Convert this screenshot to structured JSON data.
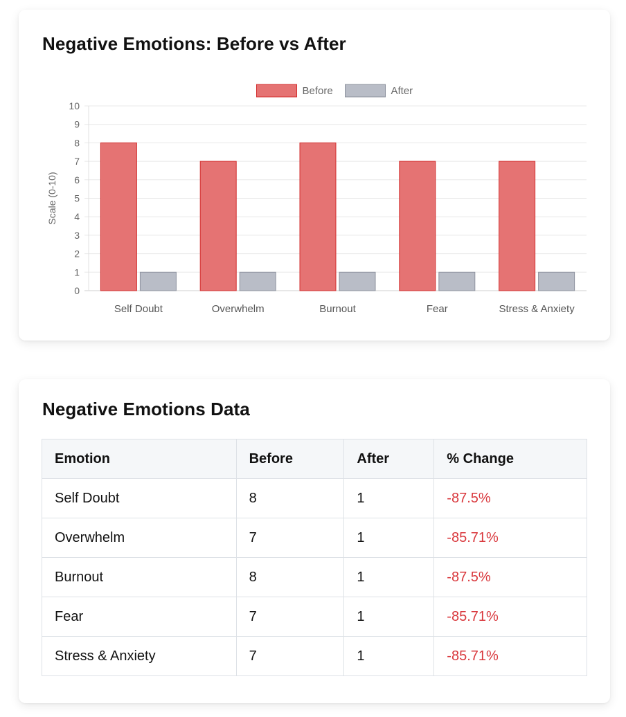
{
  "chart_card": {
    "title": "Negative Emotions: Before vs After"
  },
  "chart_data": {
    "type": "bar",
    "title": "Negative Emotions: Before vs After",
    "categories": [
      "Self Doubt",
      "Overwhelm",
      "Burnout",
      "Fear",
      "Stress & Anxiety"
    ],
    "series": [
      {
        "name": "Before",
        "values": [
          8,
          7,
          8,
          7,
          7
        ],
        "color": "#e57373",
        "border": "#d32f2f"
      },
      {
        "name": "After",
        "values": [
          1,
          1,
          1,
          1,
          1
        ],
        "color": "#b9bdc7",
        "border": "#8d929e"
      }
    ],
    "xlabel": "",
    "ylabel": "Scale (0-10)",
    "ylim": [
      0,
      10
    ],
    "yticks": [
      0,
      1,
      2,
      3,
      4,
      5,
      6,
      7,
      8,
      9,
      10
    ],
    "legend": "top-center",
    "grid": true
  },
  "table_card": {
    "title": "Negative Emotions Data",
    "headers": [
      "Emotion",
      "Before",
      "After",
      "% Change"
    ],
    "rows": [
      [
        "Self Doubt",
        "8",
        "1",
        "-87.5%"
      ],
      [
        "Overwhelm",
        "7",
        "1",
        "-85.71%"
      ],
      [
        "Burnout",
        "8",
        "1",
        "-87.5%"
      ],
      [
        "Fear",
        "7",
        "1",
        "-85.71%"
      ],
      [
        "Stress & Anxiety",
        "7",
        "1",
        "-85.71%"
      ]
    ]
  },
  "colors": {
    "before": "#e57373",
    "after": "#b9bdc7",
    "negative_change": "#d9383d"
  }
}
